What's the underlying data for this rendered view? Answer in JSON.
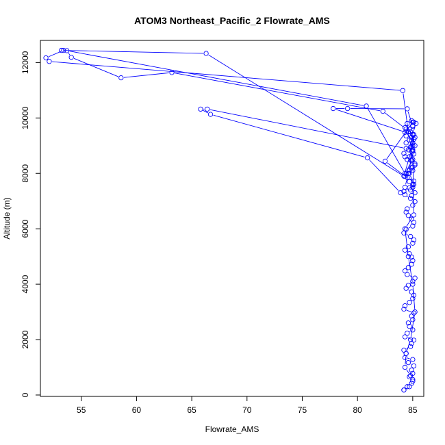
{
  "chart_data": {
    "type": "line",
    "title": "ATOM3 Northeast_Pacific_2 Flowrate_AMS",
    "xlabel": "Flowrate_AMS",
    "ylabel": "Altitude (m)",
    "xlim": [
      51.3,
      86.0
    ],
    "ylim": [
      -50,
      12800
    ],
    "x_ticks": [
      55,
      60,
      65,
      70,
      75,
      80,
      85
    ],
    "y_ticks": [
      0,
      2000,
      4000,
      6000,
      8000,
      10000,
      12000
    ],
    "grid": false,
    "series": [
      {
        "color": "#0000ff",
        "x": [
          84.2,
          84.5,
          84.9,
          85.0,
          84.7,
          85.0,
          84.9,
          85.1,
          84.6,
          85.0,
          84.3,
          84.4,
          84.2,
          84.8,
          84.9,
          85.1,
          84.3,
          84.5,
          85.0,
          84.7,
          84.6,
          85.0,
          84.9,
          85.1,
          84.2,
          84.3,
          84.7,
          85.0,
          85.1,
          84.9,
          84.4,
          84.6,
          85.0,
          85.2,
          84.5,
          84.3,
          84.6,
          84.9,
          85.0,
          84.9,
          84.7,
          84.3,
          84.6,
          85.0,
          85.1,
          84.8,
          84.2,
          84.4,
          85.0,
          85.1,
          84.9,
          84.6,
          84.4,
          84.5,
          85.0,
          85.2,
          84.8,
          84.3,
          84.2,
          84.7,
          85.0,
          85.1,
          84.5,
          84.4,
          84.7,
          85.0,
          85.2,
          84.9,
          84.3,
          84.2,
          84.6,
          84.9,
          85.0,
          85.1,
          84.4,
          84.3,
          84.7,
          85.0,
          85.1,
          84.9,
          84.5,
          84.3,
          84.6,
          85.0,
          85.2,
          84.9,
          84.4,
          84.8,
          85.0,
          85.1,
          84.7,
          84.5,
          84.9,
          85.2,
          84.9,
          85.0,
          84.6,
          84.3,
          83.9,
          80.9,
          66.7,
          65.8,
          66.4,
          84.4,
          85.0,
          84.9,
          85.3,
          85.0,
          82.5,
          84.3,
          84.7,
          85.0,
          85.2,
          84.9,
          84.8,
          85.1,
          84.7,
          85.0,
          77.8,
          79.1,
          84.5,
          85.0,
          84.8,
          85.2,
          84.9,
          85.0,
          84.3,
          80.8,
          53.7,
          54.1,
          58.6,
          63.2,
          82.3,
          84.4,
          85.1,
          85.0,
          84.2,
          66.3,
          53.2,
          53.4,
          51.8,
          52.1,
          84.1,
          84.7,
          85.0,
          85.1,
          84.3,
          84.6,
          85.0,
          85.2,
          84.8,
          84.4,
          84.3,
          84.8,
          85.0,
          84.7,
          84.2
        ],
        "y": [
          180,
          300,
          420,
          560,
          660,
          780,
          900,
          1050,
          1170,
          1280,
          1350,
          1500,
          1620,
          1750,
          1860,
          1980,
          2100,
          2230,
          2350,
          2480,
          2600,
          2720,
          2850,
          2960,
          3100,
          3220,
          3340,
          3480,
          3600,
          3720,
          3850,
          3960,
          4100,
          4220,
          4350,
          4480,
          4600,
          4720,
          4850,
          4980,
          5100,
          5230,
          5350,
          5480,
          5600,
          5720,
          5850,
          5980,
          6100,
          6230,
          6350,
          6480,
          6600,
          6720,
          6850,
          6980,
          7100,
          7230,
          7350,
          7480,
          7600,
          7720,
          7850,
          7980,
          8100,
          8230,
          8350,
          8480,
          8600,
          8720,
          8850,
          8980,
          9100,
          9230,
          9350,
          9480,
          9600,
          9720,
          9850,
          9900,
          9800,
          9650,
          9500,
          9400,
          9300,
          9200,
          9100,
          8950,
          8800,
          8700,
          8600,
          8500,
          8450,
          8300,
          8200,
          8100,
          8000,
          7500,
          7300,
          8560,
          10130,
          10320,
          10320,
          8900,
          8850,
          9300,
          9800,
          9850,
          8440,
          7900,
          7700,
          7500,
          7300,
          7200,
          7400,
          7600,
          8000,
          9400,
          10340,
          10340,
          10330,
          9700,
          9500,
          9000,
          8800,
          8500,
          8000,
          10430,
          12430,
          12190,
          11450,
          11640,
          10240,
          9600,
          9400,
          9000,
          7900,
          12330,
          12440,
          12440,
          12170,
          12040,
          10990,
          9200,
          8800,
          6500,
          6000,
          5000,
          4000,
          3000,
          2000,
          1500,
          1000,
          700,
          500,
          300,
          180
        ]
      }
    ]
  }
}
